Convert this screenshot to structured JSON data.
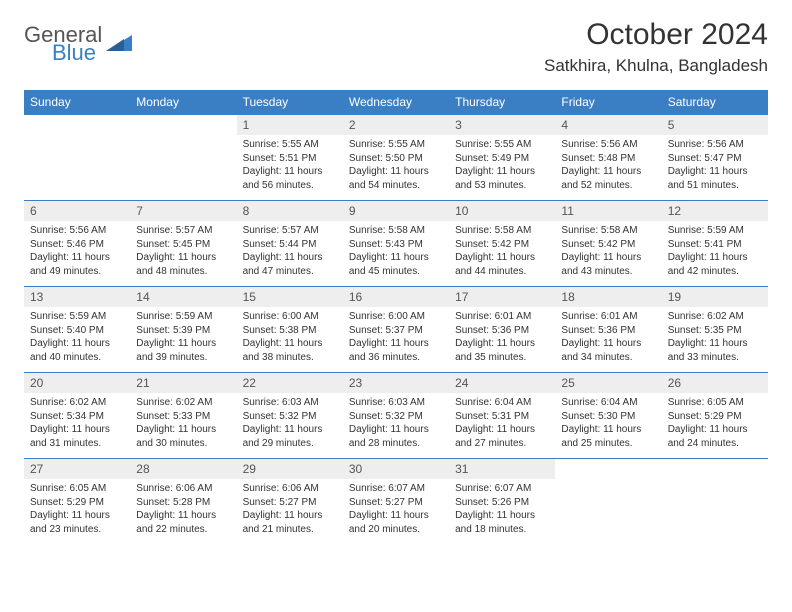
{
  "brand": {
    "line1": "General",
    "line2": "Blue"
  },
  "header": {
    "title": "October 2024",
    "location": "Satkhira, Khulna, Bangladesh"
  },
  "styling": {
    "header_bg": "#3a7fc4",
    "header_text": "#ffffff",
    "daynum_bg": "#eeeeee",
    "row_border": "#3a7fc4",
    "page_bg": "#ffffff",
    "body_text": "#333333",
    "title_fontsize": 30,
    "location_fontsize": 17,
    "weekday_fontsize": 12,
    "detail_fontsize": 10
  },
  "weekdays": [
    "Sunday",
    "Monday",
    "Tuesday",
    "Wednesday",
    "Thursday",
    "Friday",
    "Saturday"
  ],
  "weeks": [
    {
      "nums": [
        "",
        "",
        "1",
        "2",
        "3",
        "4",
        "5"
      ],
      "cells": [
        null,
        null,
        {
          "sunrise": "Sunrise: 5:55 AM",
          "sunset": "Sunset: 5:51 PM",
          "daylight": "Daylight: 11 hours and 56 minutes."
        },
        {
          "sunrise": "Sunrise: 5:55 AM",
          "sunset": "Sunset: 5:50 PM",
          "daylight": "Daylight: 11 hours and 54 minutes."
        },
        {
          "sunrise": "Sunrise: 5:55 AM",
          "sunset": "Sunset: 5:49 PM",
          "daylight": "Daylight: 11 hours and 53 minutes."
        },
        {
          "sunrise": "Sunrise: 5:56 AM",
          "sunset": "Sunset: 5:48 PM",
          "daylight": "Daylight: 11 hours and 52 minutes."
        },
        {
          "sunrise": "Sunrise: 5:56 AM",
          "sunset": "Sunset: 5:47 PM",
          "daylight": "Daylight: 11 hours and 51 minutes."
        }
      ]
    },
    {
      "nums": [
        "6",
        "7",
        "8",
        "9",
        "10",
        "11",
        "12"
      ],
      "cells": [
        {
          "sunrise": "Sunrise: 5:56 AM",
          "sunset": "Sunset: 5:46 PM",
          "daylight": "Daylight: 11 hours and 49 minutes."
        },
        {
          "sunrise": "Sunrise: 5:57 AM",
          "sunset": "Sunset: 5:45 PM",
          "daylight": "Daylight: 11 hours and 48 minutes."
        },
        {
          "sunrise": "Sunrise: 5:57 AM",
          "sunset": "Sunset: 5:44 PM",
          "daylight": "Daylight: 11 hours and 47 minutes."
        },
        {
          "sunrise": "Sunrise: 5:58 AM",
          "sunset": "Sunset: 5:43 PM",
          "daylight": "Daylight: 11 hours and 45 minutes."
        },
        {
          "sunrise": "Sunrise: 5:58 AM",
          "sunset": "Sunset: 5:42 PM",
          "daylight": "Daylight: 11 hours and 44 minutes."
        },
        {
          "sunrise": "Sunrise: 5:58 AM",
          "sunset": "Sunset: 5:42 PM",
          "daylight": "Daylight: 11 hours and 43 minutes."
        },
        {
          "sunrise": "Sunrise: 5:59 AM",
          "sunset": "Sunset: 5:41 PM",
          "daylight": "Daylight: 11 hours and 42 minutes."
        }
      ]
    },
    {
      "nums": [
        "13",
        "14",
        "15",
        "16",
        "17",
        "18",
        "19"
      ],
      "cells": [
        {
          "sunrise": "Sunrise: 5:59 AM",
          "sunset": "Sunset: 5:40 PM",
          "daylight": "Daylight: 11 hours and 40 minutes."
        },
        {
          "sunrise": "Sunrise: 5:59 AM",
          "sunset": "Sunset: 5:39 PM",
          "daylight": "Daylight: 11 hours and 39 minutes."
        },
        {
          "sunrise": "Sunrise: 6:00 AM",
          "sunset": "Sunset: 5:38 PM",
          "daylight": "Daylight: 11 hours and 38 minutes."
        },
        {
          "sunrise": "Sunrise: 6:00 AM",
          "sunset": "Sunset: 5:37 PM",
          "daylight": "Daylight: 11 hours and 36 minutes."
        },
        {
          "sunrise": "Sunrise: 6:01 AM",
          "sunset": "Sunset: 5:36 PM",
          "daylight": "Daylight: 11 hours and 35 minutes."
        },
        {
          "sunrise": "Sunrise: 6:01 AM",
          "sunset": "Sunset: 5:36 PM",
          "daylight": "Daylight: 11 hours and 34 minutes."
        },
        {
          "sunrise": "Sunrise: 6:02 AM",
          "sunset": "Sunset: 5:35 PM",
          "daylight": "Daylight: 11 hours and 33 minutes."
        }
      ]
    },
    {
      "nums": [
        "20",
        "21",
        "22",
        "23",
        "24",
        "25",
        "26"
      ],
      "cells": [
        {
          "sunrise": "Sunrise: 6:02 AM",
          "sunset": "Sunset: 5:34 PM",
          "daylight": "Daylight: 11 hours and 31 minutes."
        },
        {
          "sunrise": "Sunrise: 6:02 AM",
          "sunset": "Sunset: 5:33 PM",
          "daylight": "Daylight: 11 hours and 30 minutes."
        },
        {
          "sunrise": "Sunrise: 6:03 AM",
          "sunset": "Sunset: 5:32 PM",
          "daylight": "Daylight: 11 hours and 29 minutes."
        },
        {
          "sunrise": "Sunrise: 6:03 AM",
          "sunset": "Sunset: 5:32 PM",
          "daylight": "Daylight: 11 hours and 28 minutes."
        },
        {
          "sunrise": "Sunrise: 6:04 AM",
          "sunset": "Sunset: 5:31 PM",
          "daylight": "Daylight: 11 hours and 27 minutes."
        },
        {
          "sunrise": "Sunrise: 6:04 AM",
          "sunset": "Sunset: 5:30 PM",
          "daylight": "Daylight: 11 hours and 25 minutes."
        },
        {
          "sunrise": "Sunrise: 6:05 AM",
          "sunset": "Sunset: 5:29 PM",
          "daylight": "Daylight: 11 hours and 24 minutes."
        }
      ]
    },
    {
      "nums": [
        "27",
        "28",
        "29",
        "30",
        "31",
        "",
        ""
      ],
      "cells": [
        {
          "sunrise": "Sunrise: 6:05 AM",
          "sunset": "Sunset: 5:29 PM",
          "daylight": "Daylight: 11 hours and 23 minutes."
        },
        {
          "sunrise": "Sunrise: 6:06 AM",
          "sunset": "Sunset: 5:28 PM",
          "daylight": "Daylight: 11 hours and 22 minutes."
        },
        {
          "sunrise": "Sunrise: 6:06 AM",
          "sunset": "Sunset: 5:27 PM",
          "daylight": "Daylight: 11 hours and 21 minutes."
        },
        {
          "sunrise": "Sunrise: 6:07 AM",
          "sunset": "Sunset: 5:27 PM",
          "daylight": "Daylight: 11 hours and 20 minutes."
        },
        {
          "sunrise": "Sunrise: 6:07 AM",
          "sunset": "Sunset: 5:26 PM",
          "daylight": "Daylight: 11 hours and 18 minutes."
        },
        null,
        null
      ]
    }
  ]
}
